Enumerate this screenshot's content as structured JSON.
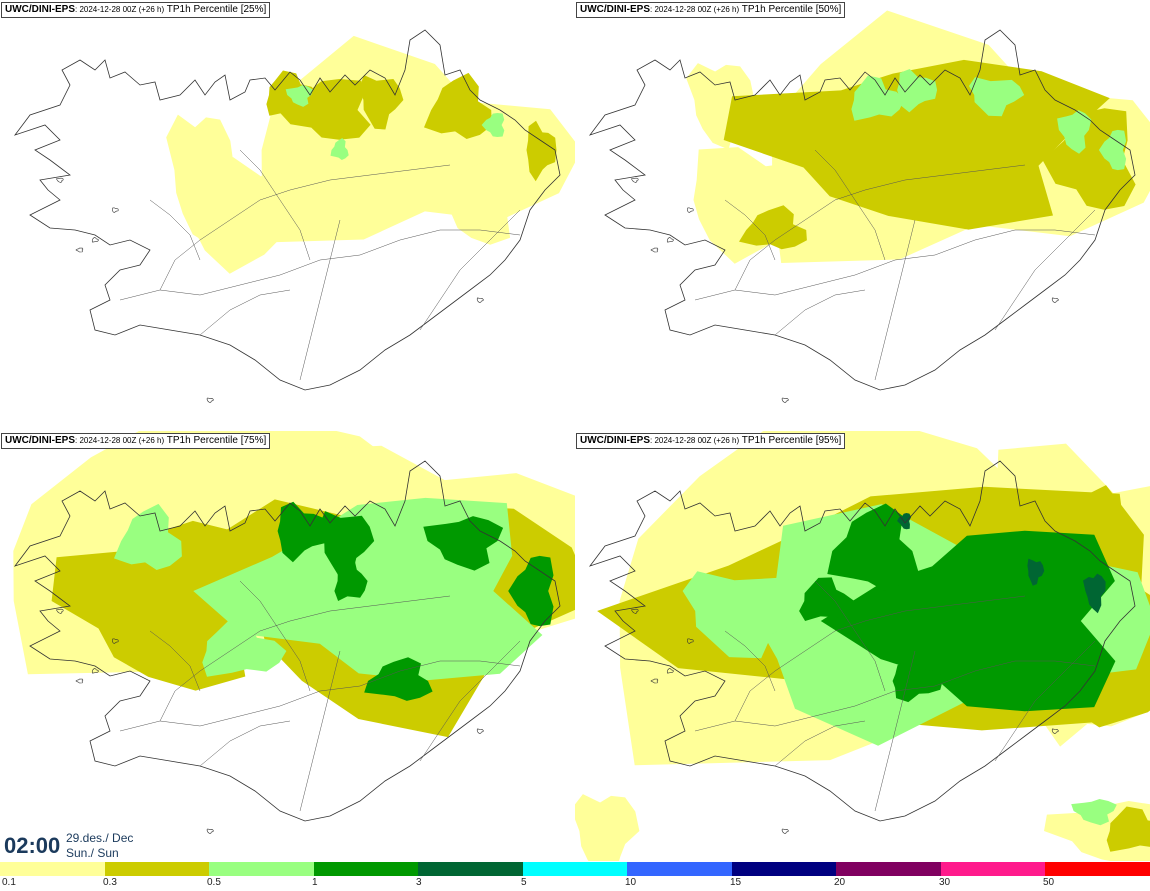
{
  "product": "UWC/DINI-EPS",
  "run": ": 2024-12-28 00Z (+26 h)",
  "panels": [
    {
      "label": "TP1h Percentile [25%]",
      "level": "p25"
    },
    {
      "label": "TP1h Percentile [50%]",
      "level": "p50"
    },
    {
      "label": "TP1h Percentile [75%]",
      "level": "p75"
    },
    {
      "label": "TP1h Percentile [95%]",
      "level": "p95"
    }
  ],
  "time": {
    "clock": "02:00",
    "date": "29.des./ Dec",
    "day": "Sun./ Sun"
  },
  "legend": {
    "colors": [
      "#ffff99",
      "#cccc00",
      "#99ff80",
      "#009900",
      "#006633",
      "#00ffff",
      "#3366ff",
      "#000080",
      "#800060",
      "#ff1a8c",
      "#ff0000"
    ],
    "ticks": [
      "0.1",
      "0.3",
      "0.5",
      "1",
      "3",
      "5",
      "10",
      "15",
      "20",
      "30",
      "50"
    ]
  }
}
